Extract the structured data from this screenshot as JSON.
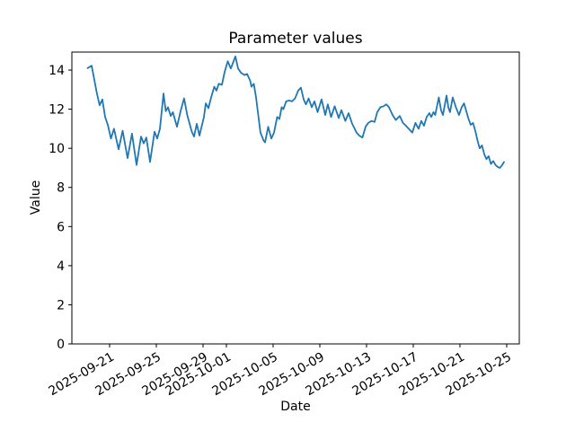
{
  "chart_data": {
    "type": "line",
    "title": "Parameter values",
    "xlabel": "Date",
    "ylabel": "Value",
    "line_color": "#1f77b4",
    "background_color": "#ffffff",
    "grid": false,
    "legend": "none",
    "ylim": [
      0,
      14.92
    ],
    "y_ticks": [
      0,
      2,
      4,
      6,
      8,
      10,
      12,
      14
    ],
    "x_epoch": "2025-09-21",
    "xlim_days": [
      -3.23,
      35.08
    ],
    "x_ticks": [
      {
        "day": 0,
        "label": "2025-09-21"
      },
      {
        "day": 4,
        "label": "2025-09-25"
      },
      {
        "day": 8,
        "label": "2025-09-29"
      },
      {
        "day": 10,
        "label": "2025-10-01"
      },
      {
        "day": 14,
        "label": "2025-10-05"
      },
      {
        "day": 18,
        "label": "2025-10-09"
      },
      {
        "day": 22,
        "label": "2025-10-13"
      },
      {
        "day": 26,
        "label": "2025-10-17"
      },
      {
        "day": 30,
        "label": "2025-10-21"
      },
      {
        "day": 34,
        "label": "2025-10-25"
      }
    ],
    "x_days": [
      -1.88,
      -1.54,
      -1.31,
      -1.08,
      -0.85,
      -0.62,
      -0.38,
      -0.15,
      0.12,
      0.38,
      0.77,
      1.12,
      1.54,
      1.92,
      2.31,
      2.69,
      2.92,
      3.15,
      3.46,
      3.85,
      4.08,
      4.31,
      4.62,
      4.81,
      5.0,
      5.23,
      5.42,
      5.77,
      6.08,
      6.38,
      6.65,
      7.04,
      7.23,
      7.46,
      7.69,
      8.08,
      8.23,
      8.46,
      8.69,
      8.96,
      9.15,
      9.35,
      9.62,
      9.85,
      10.12,
      10.38,
      10.77,
      11.0,
      11.27,
      11.54,
      11.77,
      12.04,
      12.15,
      12.35,
      12.54,
      12.69,
      12.92,
      13.19,
      13.31,
      13.58,
      13.85,
      14.08,
      14.35,
      14.54,
      14.73,
      14.88,
      15.12,
      15.38,
      15.62,
      15.88,
      16.15,
      16.38,
      16.62,
      16.81,
      17.04,
      17.31,
      17.54,
      17.81,
      18.15,
      18.46,
      18.69,
      18.96,
      19.27,
      19.62,
      19.85,
      20.19,
      20.46,
      20.77,
      21.15,
      21.38,
      21.65,
      21.92,
      22.15,
      22.42,
      22.69,
      22.92,
      23.19,
      23.46,
      23.69,
      23.92,
      24.23,
      24.5,
      24.85,
      25.12,
      25.38,
      25.77,
      25.92,
      26.19,
      26.46,
      26.69,
      26.92,
      27.15,
      27.38,
      27.54,
      27.73,
      27.88,
      28.19,
      28.38,
      28.54,
      28.85,
      29.0,
      29.15,
      29.38,
      29.65,
      29.92,
      30.15,
      30.35,
      30.54,
      30.73,
      30.92,
      31.12,
      31.31,
      31.5,
      31.69,
      31.88,
      32.08,
      32.27,
      32.46,
      32.65,
      32.85,
      33.04,
      33.23,
      33.42,
      33.62,
      33.77
    ],
    "values": [
      14.1,
      14.22,
      13.5,
      12.8,
      12.2,
      12.5,
      11.6,
      11.2,
      10.5,
      11.0,
      9.95,
      10.9,
      9.5,
      10.75,
      9.15,
      10.6,
      10.25,
      10.55,
      9.3,
      10.85,
      10.5,
      11.0,
      12.8,
      11.9,
      12.1,
      11.65,
      11.85,
      11.1,
      11.9,
      12.55,
      11.7,
      10.85,
      10.6,
      11.25,
      10.65,
      11.6,
      12.3,
      12.05,
      12.6,
      13.15,
      12.95,
      13.3,
      13.25,
      13.9,
      14.45,
      14.08,
      14.7,
      14.08,
      13.85,
      13.75,
      13.8,
      13.45,
      13.15,
      13.3,
      12.6,
      11.9,
      10.8,
      10.4,
      10.3,
      11.1,
      10.5,
      10.8,
      11.6,
      11.5,
      12.1,
      12.0,
      12.4,
      12.45,
      12.4,
      12.55,
      12.95,
      13.1,
      12.5,
      12.25,
      12.55,
      12.1,
      12.4,
      11.85,
      12.5,
      11.7,
      12.25,
      11.6,
      12.15,
      11.55,
      11.95,
      11.4,
      11.8,
      11.25,
      10.8,
      10.65,
      10.55,
      11.1,
      11.3,
      11.4,
      11.35,
      11.85,
      12.1,
      12.15,
      12.25,
      12.1,
      11.7,
      11.45,
      11.65,
      11.3,
      11.15,
      10.9,
      10.8,
      11.3,
      11.0,
      11.4,
      11.15,
      11.6,
      11.8,
      11.6,
      11.85,
      11.7,
      12.6,
      11.95,
      11.7,
      12.7,
      12.1,
      11.85,
      12.6,
      12.1,
      11.7,
      12.1,
      12.3,
      11.9,
      11.5,
      11.2,
      11.3,
      10.9,
      10.4,
      10.0,
      10.15,
      9.7,
      9.45,
      9.6,
      9.2,
      9.35,
      9.15,
      9.05,
      9.0,
      9.15,
      9.3
    ]
  }
}
